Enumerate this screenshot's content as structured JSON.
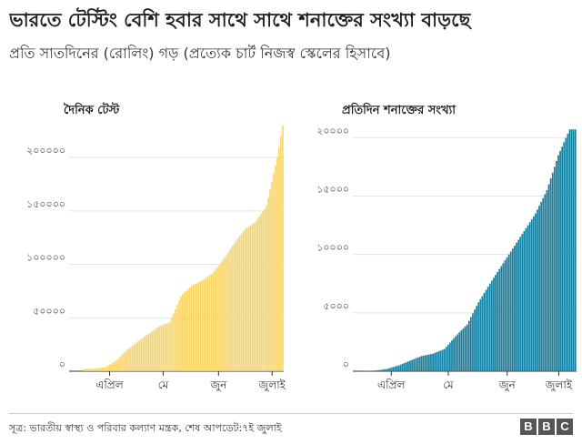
{
  "title": "ভারতে টেস্টিং বেশি হবার সাথে সাথে শনাক্তের সংখ্যা বাড়ছে",
  "subtitle": "প্রতি সাতদিনের (রোলিং) গড় (প্রত্যেক চার্ট নিজস্ব স্কেলের হিসাবে)",
  "source": "সূত্র: ভারতীয় স্বাস্থ্য ও পরিবার কল্যাণ মন্ত্রক, শেষ আপডেট:৭ই জুলাই",
  "logo": [
    "B",
    "B",
    "C"
  ],
  "chart_data": [
    {
      "type": "bar",
      "title": "দৈনিক টেস্ট",
      "color": "#f8d568",
      "ylim": [
        0,
        235000
      ],
      "yticks": [
        0,
        50000,
        100000,
        150000,
        200000
      ],
      "ytick_labels": [
        "০",
        "৫০০০০",
        "১০০০০০",
        "১৫০০০০",
        "২০০০০০"
      ],
      "xtick_labels": [
        "এপ্রিল",
        "মে",
        "জুন",
        "জুলাই"
      ],
      "xtick_days": [
        14,
        44,
        75,
        105
      ],
      "start_date": "2020-03-18",
      "keypoints": [
        [
          0,
          2000
        ],
        [
          6,
          2500
        ],
        [
          12,
          4000
        ],
        [
          18,
          10000
        ],
        [
          24,
          20000
        ],
        [
          30,
          28000
        ],
        [
          36,
          35000
        ],
        [
          42,
          42000
        ],
        [
          48,
          46000
        ],
        [
          54,
          70000
        ],
        [
          60,
          80000
        ],
        [
          66,
          85000
        ],
        [
          72,
          92000
        ],
        [
          78,
          105000
        ],
        [
          84,
          120000
        ],
        [
          90,
          133000
        ],
        [
          96,
          140000
        ],
        [
          102,
          155000
        ],
        [
          108,
          200000
        ],
        [
          111,
          230000
        ]
      ]
    },
    {
      "type": "bar",
      "title": "প্রতিদিন শনাক্তের সংখ্যা",
      "color": "#1380a1",
      "ylim": [
        0,
        21500
      ],
      "yticks": [
        0,
        5000,
        10000,
        15000,
        20000
      ],
      "ytick_labels": [
        "০",
        "৫০০০",
        "১০০০০",
        "১৫০০০",
        "২০০০০"
      ],
      "xtick_labels": [
        "এপ্রিল",
        "মে",
        "জুন",
        "জুলাই"
      ],
      "xtick_days": [
        14,
        44,
        75,
        105
      ],
      "start_date": "2020-03-18",
      "keypoints": [
        [
          0,
          20
        ],
        [
          6,
          60
        ],
        [
          12,
          200
        ],
        [
          18,
          500
        ],
        [
          24,
          900
        ],
        [
          30,
          1300
        ],
        [
          36,
          1500
        ],
        [
          42,
          1900
        ],
        [
          48,
          3000
        ],
        [
          54,
          4000
        ],
        [
          60,
          5900
        ],
        [
          66,
          7500
        ],
        [
          72,
          9000
        ],
        [
          78,
          10500
        ],
        [
          84,
          12000
        ],
        [
          90,
          13500
        ],
        [
          96,
          15500
        ],
        [
          102,
          18500
        ],
        [
          108,
          20700
        ]
      ]
    }
  ]
}
